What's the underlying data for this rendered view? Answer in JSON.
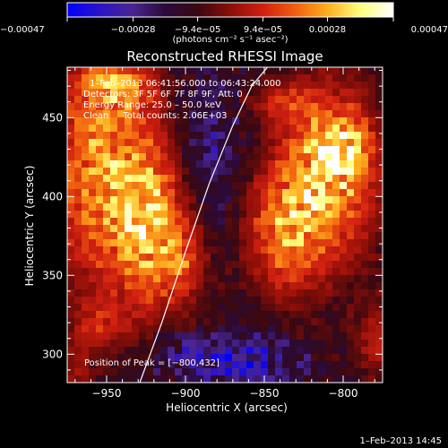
{
  "chart_data": {
    "type": "heatmap",
    "title": "Reconstructed RHESSI Image",
    "xlabel": "Heliocentric X (arcsec)",
    "ylabel": "Heliocentric Y (arcsec)",
    "xlim": [
      -975,
      -775
    ],
    "ylim": [
      282,
      482
    ],
    "x_ticks": [
      -950,
      -900,
      -850,
      -800
    ],
    "y_ticks": [
      300,
      350,
      400,
      450
    ],
    "x_tick_labels": [
      "−950",
      "−900",
      "−850",
      "−800"
    ],
    "y_tick_labels": [
      "300",
      "350",
      "400",
      "450"
    ],
    "colorbar": {
      "range": [
        -0.00047,
        0.00047
      ],
      "ticks": [
        -0.00047,
        -0.00028,
        -9.4e-05,
        9.4e-05,
        0.00028,
        0.00047
      ],
      "tick_labels": [
        "−0.00047",
        "−0.00028",
        "−9.4e−05",
        "9.4e−05",
        "0.00028",
        "0.00047"
      ],
      "units": "(photons cm⁻² s⁻¹ asec⁻²)",
      "colormap": [
        "#0000ff",
        "#2a14c8",
        "#4a2590",
        "#2a0a3a",
        "#3a0810",
        "#8a0e08",
        "#d02010",
        "#f06010",
        "#ffb020",
        "#ffff80",
        "#ffffff"
      ]
    },
    "annotations": {
      "time_range": "1–Feb–2013 06:41:56.000 to 06:43:24.000",
      "detectors": "Detectors: 3F 5F 6F 7F 8F 9F, Att: 0",
      "energy": "Energy Range: 25.0 – 50.0 keV",
      "clean": "Clean     Total counts: 2.06E+03",
      "peak": "Position of Peak = [−800,432]"
    },
    "limb_curve": {
      "x": [
        -929,
        -915,
        -900,
        -885,
        -870,
        -858,
        -848
      ],
      "y": [
        282,
        320,
        365,
        408,
        445,
        470,
        482
      ]
    },
    "peak_position": {
      "x": -800,
      "y": 432
    },
    "emission_regions": [
      {
        "x": -955,
        "y": 418,
        "sx": 24,
        "sy": 55,
        "amp": 0.00036
      },
      {
        "x": -922,
        "y": 382,
        "sx": 16,
        "sy": 40,
        "amp": 0.00034
      },
      {
        "x": -900,
        "y": 360,
        "sx": 10,
        "sy": 20,
        "amp": 0.0002
      },
      {
        "x": -942,
        "y": 470,
        "sx": 16,
        "sy": 10,
        "amp": 0.00022
      },
      {
        "x": -808,
        "y": 415,
        "sx": 22,
        "sy": 40,
        "amp": 0.0004
      },
      {
        "x": -800,
        "y": 432,
        "sx": 12,
        "sy": 14,
        "amp": 0.0002
      },
      {
        "x": -838,
        "y": 378,
        "sx": 18,
        "sy": 30,
        "amp": 0.0003
      },
      {
        "x": -840,
        "y": 460,
        "sx": 14,
        "sy": 10,
        "amp": 0.00016
      },
      {
        "x": -778,
        "y": 308,
        "sx": 10,
        "sy": 16,
        "amp": 0.0002
      },
      {
        "x": -955,
        "y": 318,
        "sx": 12,
        "sy": 12,
        "amp": 0.00016
      },
      {
        "x": -970,
        "y": 290,
        "sx": 8,
        "sy": 10,
        "amp": 0.00012
      }
    ],
    "negative_regions": [
      {
        "x": -860,
        "y": 295,
        "sx": 22,
        "sy": 12,
        "amp": -0.00024
      },
      {
        "x": -885,
        "y": 430,
        "sx": 14,
        "sy": 35,
        "amp": -0.00012
      },
      {
        "x": -905,
        "y": 300,
        "sx": 18,
        "sy": 12,
        "amp": -0.0001
      }
    ]
  },
  "footer": {
    "timestamp": "1–Feb–2013 14:45"
  }
}
